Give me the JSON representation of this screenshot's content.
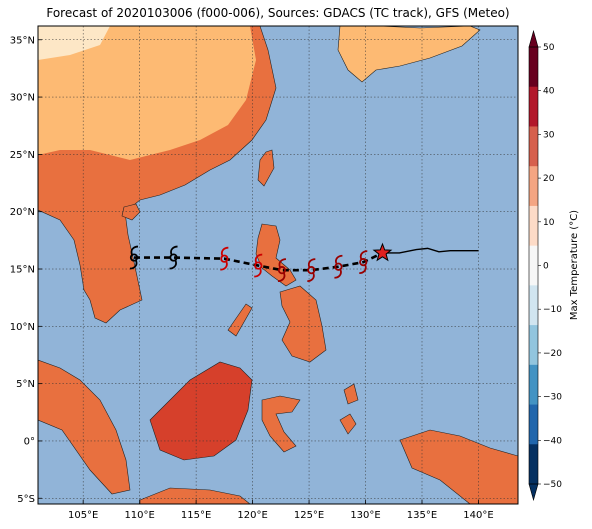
{
  "title": "Forecast of 2020103006 (f000-006), Sources: GDACS (TC track), GFS (Meteo)",
  "map": {
    "ocean_color": "#91b4d8",
    "lat_labels": [
      "35°N",
      "30°N",
      "25°N",
      "20°N",
      "15°N",
      "10°N",
      "5°N",
      "0°",
      "5°S"
    ],
    "lon_labels": [
      "105°E",
      "110°E",
      "115°E",
      "120°E",
      "125°E",
      "130°E",
      "135°E",
      "140°E"
    ]
  },
  "colorbar": {
    "label": "Max Temperature (°C)",
    "ticks": [
      "50",
      "40",
      "30",
      "20",
      "10",
      "0",
      "−10",
      "−20",
      "−30",
      "−40",
      "−50"
    ],
    "colors": [
      "#67001f",
      "#b2182b",
      "#d6604d",
      "#f4a582",
      "#fddbc7",
      "#f7f7f7",
      "#d1e5f0",
      "#92c5de",
      "#4393c3",
      "#2166ac",
      "#053061"
    ]
  },
  "track": {
    "forecast_points": [
      {
        "lon": 109.5,
        "lat": 16.0,
        "color": "#000000"
      },
      {
        "lon": 113.0,
        "lat": 16.0,
        "color": "#000000"
      },
      {
        "lon": 117.5,
        "lat": 15.9,
        "color": "#cc0000"
      },
      {
        "lon": 120.5,
        "lat": 15.3,
        "color": "#cc0000"
      },
      {
        "lon": 122.6,
        "lat": 14.9,
        "color": "#990000"
      },
      {
        "lon": 125.2,
        "lat": 14.9,
        "color": "#990000"
      },
      {
        "lon": 127.6,
        "lat": 15.2,
        "color": "#990000"
      },
      {
        "lon": 129.8,
        "lat": 15.6,
        "color": "#990000"
      }
    ],
    "current_position": {
      "lon": 131.5,
      "lat": 16.4
    },
    "past_track": [
      [
        131.5,
        16.4
      ],
      [
        133.0,
        16.4
      ],
      [
        134.5,
        16.7
      ],
      [
        135.5,
        16.8
      ],
      [
        136.5,
        16.5
      ],
      [
        137.5,
        16.6
      ],
      [
        140.0,
        16.6
      ]
    ]
  }
}
